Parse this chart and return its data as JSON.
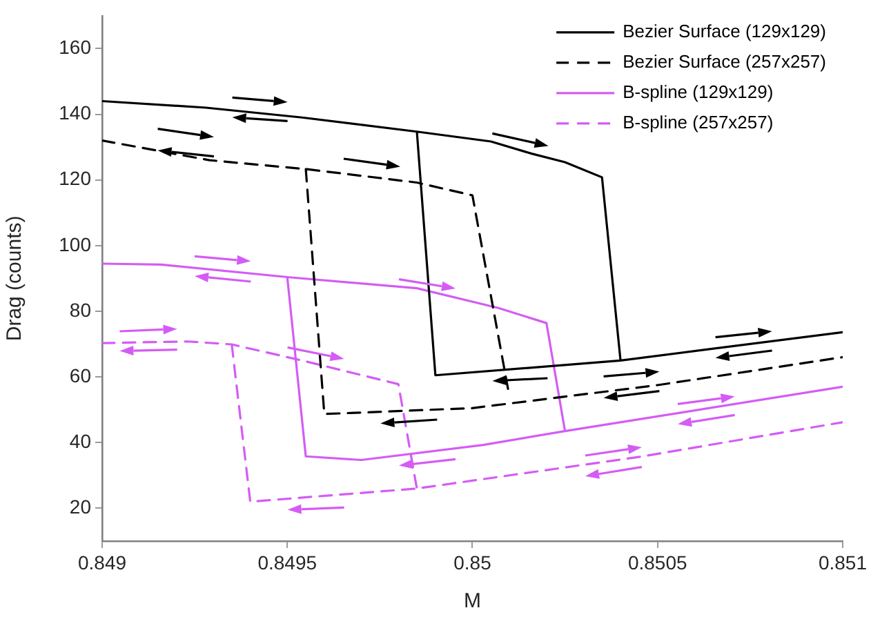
{
  "chart_data": {
    "type": "line",
    "xlabel": "M",
    "ylabel": "Drag (counts)",
    "xlim": [
      0.849,
      0.851
    ],
    "xticks": [
      0.849,
      0.8495,
      0.85,
      0.8505,
      0.851
    ],
    "ylim": [
      10,
      170
    ],
    "yticks": [
      20,
      40,
      60,
      80,
      100,
      120,
      140,
      160
    ],
    "grid": false,
    "legend": "top right",
    "marker": "none",
    "series": [
      {
        "name": "Bezier Surface (129x129)",
        "color": "#000000",
        "line_style": "solid",
        "x": [
          0.849,
          0.84928,
          0.84954,
          0.84985,
          0.85005,
          0.85016,
          0.85025,
          0.85035,
          0.8504,
          null,
          0.84985,
          0.8499,
          0.8504,
          0.851
        ],
        "values": [
          144,
          142,
          139,
          134.7,
          131.7,
          128,
          125.4,
          120.8,
          65,
          null,
          134.7,
          60.5,
          65,
          73.6
        ]
      },
      {
        "name": "Bezier Surface (257x257)",
        "color": "#000000",
        "line_style": "dashed",
        "x": [
          0.849,
          0.84929,
          0.84955,
          0.84985,
          0.85,
          0.8501,
          null,
          0.84955,
          0.8496,
          0.85,
          0.8505,
          0.851
        ],
        "values": [
          132,
          126,
          123.3,
          119.2,
          115.3,
          54,
          null,
          123.3,
          48.7,
          50.5,
          57.5,
          66
        ]
      },
      {
        "name": "B-spline (129x129)",
        "color": "#d45cf5",
        "line_style": "solid",
        "x": [
          0.849,
          0.84916,
          0.8495,
          0.84985,
          0.85007,
          0.8502,
          0.85025,
          null,
          0.8495,
          0.84955,
          0.8497,
          0.85003,
          0.85025,
          0.851
        ],
        "values": [
          94.5,
          94.2,
          90.4,
          87,
          81,
          76.4,
          43.5,
          null,
          90.4,
          35.8,
          34.7,
          39.3,
          43.5,
          57
        ]
      },
      {
        "name": "B-spline (257x257)",
        "color": "#d45cf5",
        "line_style": "dashed",
        "x": [
          0.849,
          0.84923,
          0.84935,
          0.84954,
          0.8498,
          0.84985,
          null,
          0.84935,
          0.8494,
          0.84985,
          0.85046,
          0.851
        ],
        "values": [
          70.3,
          70.8,
          69.9,
          65,
          57.8,
          26,
          null,
          69.9,
          22,
          26,
          35.8,
          46.2
        ]
      }
    ]
  }
}
